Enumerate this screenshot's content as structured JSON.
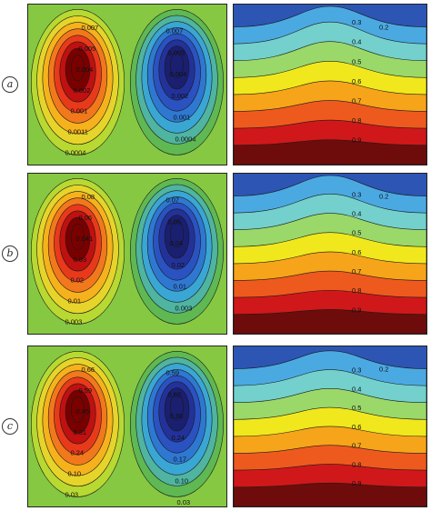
{
  "rows": [
    {
      "label": "a",
      "stream_labels_left": [
        "0.007",
        "0.005",
        "0.004",
        "0.002",
        "0.001",
        "0.0011",
        "0.0004"
      ],
      "stream_labels_right": [
        "0.007",
        "0.005",
        "0.004",
        "0.002",
        "0.001",
        "0.0004"
      ],
      "temp_levels": [
        "0.2",
        "0.3",
        "0.4",
        "0.5",
        "0.6",
        "0.7",
        "0.8",
        "0.9"
      ]
    },
    {
      "label": "b",
      "stream_labels_left": [
        "0.08",
        "0.06",
        "0.041",
        "0.03",
        "0.02",
        "0.01",
        "0.003"
      ],
      "stream_labels_right": [
        "0.07",
        "0.05",
        "0.04",
        "0.02",
        "0.01",
        "0.003"
      ],
      "temp_levels": [
        "0.2",
        "0.3",
        "0.4",
        "0.5",
        "0.6",
        "0.7",
        "0.8",
        "0.9"
      ]
    },
    {
      "label": "c",
      "stream_labels_left": [
        "0.66",
        "0.59",
        "0.45",
        "0.31",
        "0.24",
        "0.10",
        "0.03"
      ],
      "stream_labels_right": [
        "0.59",
        "0.52",
        "0.38",
        "0.24",
        "0.17",
        "0.10",
        "0.03"
      ],
      "temp_levels": [
        "0.2",
        "0.3",
        "0.4",
        "0.5",
        "0.6",
        "0.7",
        "0.8",
        "0.9"
      ]
    }
  ],
  "colors": {
    "stream_scale": [
      "#7a0000",
      "#c01010",
      "#e83a1a",
      "#f2781c",
      "#f6b21c",
      "#e6d42a",
      "#b8d832",
      "#86c842",
      "#5fb852",
      "#4fb4a0",
      "#3aa6d4",
      "#2e78d2",
      "#2a52c0",
      "#23329a",
      "#1a1f70"
    ],
    "temp_scale": [
      "#2c55b4",
      "#4ba9e2",
      "#73d0cc",
      "#9bd86a",
      "#f0e81c",
      "#f6a41a",
      "#ee5a1e",
      "#d0181a",
      "#6e0c0c"
    ]
  }
}
